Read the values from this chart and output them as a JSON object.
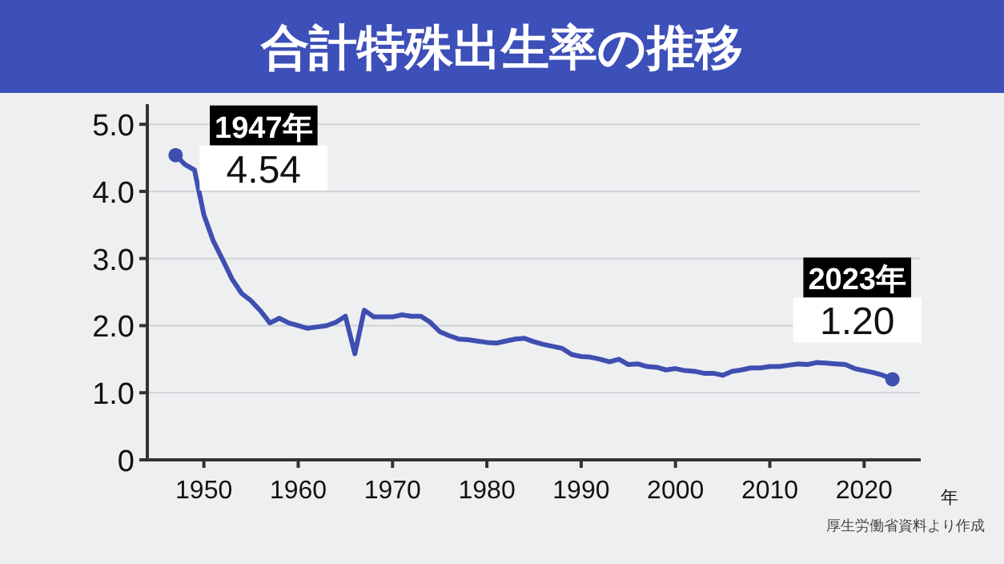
{
  "chart_data": {
    "type": "line",
    "title": "合計特殊出生率の推移",
    "xlabel": "年",
    "x": [
      1947,
      1948,
      1949,
      1950,
      1951,
      1952,
      1953,
      1954,
      1955,
      1956,
      1957,
      1958,
      1959,
      1960,
      1961,
      1962,
      1963,
      1964,
      1965,
      1966,
      1967,
      1968,
      1969,
      1970,
      1971,
      1972,
      1973,
      1974,
      1975,
      1976,
      1977,
      1978,
      1979,
      1980,
      1981,
      1982,
      1983,
      1984,
      1985,
      1986,
      1987,
      1988,
      1989,
      1990,
      1991,
      1992,
      1993,
      1994,
      1995,
      1996,
      1997,
      1998,
      1999,
      2000,
      2001,
      2002,
      2003,
      2004,
      2005,
      2006,
      2007,
      2008,
      2009,
      2010,
      2011,
      2012,
      2013,
      2014,
      2015,
      2016,
      2017,
      2018,
      2019,
      2020,
      2021,
      2022,
      2023
    ],
    "series": [
      {
        "color": "#3f4fb0",
        "values": [
          4.54,
          4.4,
          4.32,
          3.65,
          3.26,
          2.98,
          2.69,
          2.48,
          2.37,
          2.22,
          2.04,
          2.11,
          2.04,
          2.0,
          1.96,
          1.98,
          2.0,
          2.05,
          2.14,
          1.58,
          2.23,
          2.13,
          2.13,
          2.13,
          2.16,
          2.14,
          2.14,
          2.05,
          1.91,
          1.85,
          1.8,
          1.79,
          1.77,
          1.75,
          1.74,
          1.77,
          1.8,
          1.81,
          1.76,
          1.72,
          1.69,
          1.66,
          1.57,
          1.54,
          1.53,
          1.5,
          1.46,
          1.5,
          1.42,
          1.43,
          1.39,
          1.38,
          1.34,
          1.36,
          1.33,
          1.32,
          1.29,
          1.29,
          1.26,
          1.32,
          1.34,
          1.37,
          1.37,
          1.39,
          1.39,
          1.41,
          1.43,
          1.42,
          1.45,
          1.44,
          1.43,
          1.42,
          1.36,
          1.33,
          1.3,
          1.26,
          1.2
        ]
      }
    ],
    "xlim": [
      1944,
      2026
    ],
    "xticks": [
      1950,
      1960,
      1970,
      1980,
      1990,
      2000,
      2010,
      2020
    ],
    "ylim": [
      0,
      5.3
    ],
    "yticks": [
      0,
      {
        "value": 1,
        "label": "1.0"
      },
      {
        "value": 2,
        "label": "2.0"
      },
      {
        "value": 3,
        "label": "3.0"
      },
      {
        "value": 4,
        "label": "4.0"
      },
      {
        "value": 5,
        "label": "5.0"
      }
    ],
    "grid": "y",
    "line_style": "solid",
    "annotations": [
      {
        "text": "1947年\n4.54",
        "x": 1947,
        "y": 4.54
      },
      {
        "text": "2023年\n1.20",
        "x": 2023,
        "y": 1.2
      },
      "厚生労働省資料より作成"
    ]
  }
}
